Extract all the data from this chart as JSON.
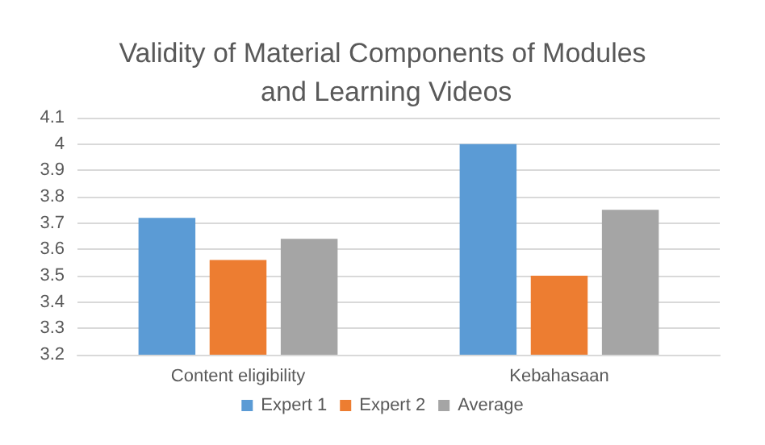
{
  "chart_data": {
    "type": "bar",
    "title": "Validity of Material Components of Modules and Learning Videos",
    "categories": [
      "Content eligibility",
      "Kebahasaan"
    ],
    "series": [
      {
        "name": "Expert 1",
        "color": "#5b9bd5",
        "values": [
          3.72,
          4.0
        ]
      },
      {
        "name": "Expert 2",
        "color": "#ed7d31",
        "values": [
          3.56,
          3.5
        ]
      },
      {
        "name": "Average",
        "color": "#a5a5a5",
        "values": [
          3.64,
          3.75
        ]
      }
    ],
    "ylim": [
      3.2,
      4.1
    ],
    "yticks": [
      3.2,
      3.3,
      3.4,
      3.5,
      3.6,
      3.7,
      3.8,
      3.9,
      4,
      4.1
    ],
    "grid": "y",
    "legend": "bottom"
  }
}
